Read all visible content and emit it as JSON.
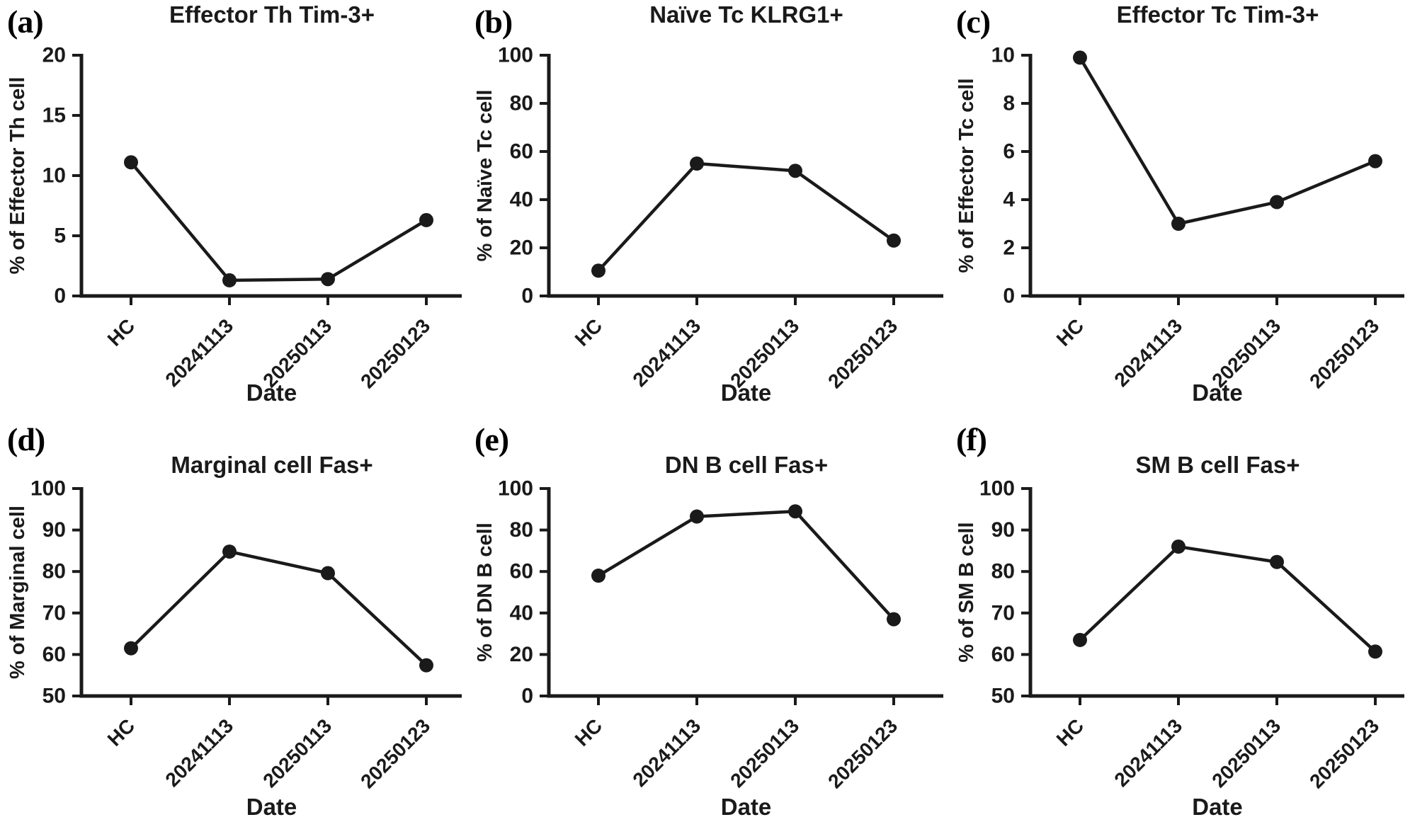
{
  "colors": {
    "ink": "#1a1a1a",
    "background": "#ffffff"
  },
  "chart_data": [
    {
      "panel": "(a)",
      "type": "line",
      "title": "Effector Th Tim-3+",
      "ylabel": "% of Effector Th cell",
      "xlabel": "Date",
      "categories": [
        "HC",
        "20241113",
        "20250113",
        "20250123"
      ],
      "values": [
        11.1,
        1.3,
        1.4,
        6.3
      ],
      "ylim": [
        0,
        20
      ],
      "yticks": [
        0,
        5,
        10,
        15,
        20
      ],
      "grid": false,
      "legend": "none"
    },
    {
      "panel": "(b)",
      "type": "line",
      "title": "Naïve Tc KLRG1+",
      "ylabel": "% of Naïve Tc cell",
      "xlabel": "Date",
      "categories": [
        "HC",
        "20241113",
        "20250113",
        "20250123"
      ],
      "values": [
        10.5,
        55,
        52,
        23
      ],
      "ylim": [
        0,
        100
      ],
      "yticks": [
        0,
        20,
        40,
        60,
        80,
        100
      ],
      "grid": false,
      "legend": "none"
    },
    {
      "panel": "(c)",
      "type": "line",
      "title": "Effector Tc Tim-3+",
      "ylabel": "% of Effector Tc cell",
      "xlabel": "Date",
      "categories": [
        "HC",
        "20241113",
        "20250113",
        "20250123"
      ],
      "values": [
        9.9,
        3.0,
        3.9,
        5.6
      ],
      "ylim": [
        0,
        10
      ],
      "yticks": [
        0,
        2,
        4,
        6,
        8,
        10
      ],
      "grid": false,
      "legend": "none"
    },
    {
      "panel": "(d)",
      "type": "line",
      "title": "Marginal cell Fas+",
      "ylabel": "% of Marginal cell",
      "xlabel": "Date",
      "categories": [
        "HC",
        "20241113",
        "20250113",
        "20250123"
      ],
      "values": [
        61.5,
        84.8,
        79.6,
        57.4
      ],
      "ylim": [
        50,
        100
      ],
      "yticks": [
        50,
        60,
        70,
        80,
        90,
        100
      ],
      "grid": false,
      "legend": "none"
    },
    {
      "panel": "(e)",
      "type": "line",
      "title": "DN B cell Fas+",
      "ylabel": "% of DN B cell",
      "xlabel": "Date",
      "categories": [
        "HC",
        "20241113",
        "20250113",
        "20250123"
      ],
      "values": [
        58,
        86.5,
        89,
        37
      ],
      "ylim": [
        0,
        100
      ],
      "yticks": [
        0,
        20,
        40,
        60,
        80,
        100
      ],
      "grid": false,
      "legend": "none"
    },
    {
      "panel": "(f)",
      "type": "line",
      "title": "SM B cell Fas+",
      "ylabel": "% of SM B cell",
      "xlabel": "Date",
      "categories": [
        "HC",
        "20241113",
        "20250113",
        "20250123"
      ],
      "values": [
        63.5,
        86,
        82.3,
        60.7
      ],
      "ylim": [
        50,
        100
      ],
      "yticks": [
        50,
        60,
        70,
        80,
        90,
        100
      ],
      "grid": false,
      "legend": "none"
    }
  ]
}
